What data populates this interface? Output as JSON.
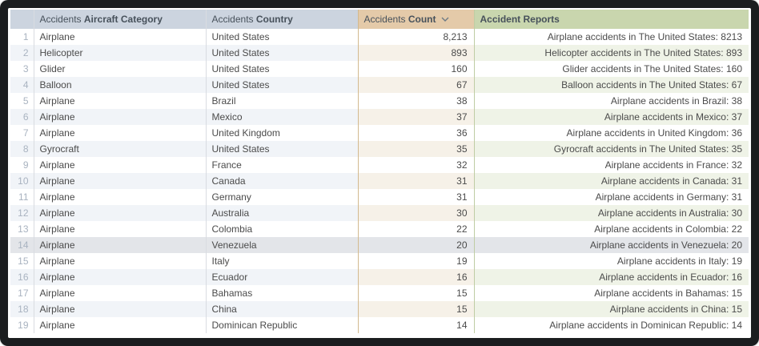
{
  "window": {
    "frame_color": "#1b1d1f",
    "background_color": "#ffffff"
  },
  "colors": {
    "header_blue": "#ccd4df",
    "header_tan": "#e4caa9",
    "header_green": "#c9d6ae",
    "header_text": "#47515b",
    "stripe_blue": "#f1f4f8",
    "stripe_tan": "#f6f1e8",
    "stripe_green": "#eff3e7",
    "highlighted_row": "#e3e5e9",
    "cell_text": "#4b4b4b",
    "row_number_text": "#a9b3c0",
    "border_tan": "#d3ba8f",
    "border_green": "#bfcda4"
  },
  "icons": {
    "sort_descending": "chevron-down-icon"
  },
  "table": {
    "columns": [
      {
        "id": "rownum",
        "prefix": "",
        "label": "",
        "sortable": false
      },
      {
        "id": "category",
        "prefix": "Accidents ",
        "label": "Aircraft Category",
        "sortable": true
      },
      {
        "id": "country",
        "prefix": "Accidents ",
        "label": "Country",
        "sortable": true
      },
      {
        "id": "count",
        "prefix": "Accidents ",
        "label": "Count",
        "sortable": true,
        "sort": "desc"
      },
      {
        "id": "reports",
        "prefix": "",
        "label": "Accident Reports",
        "sortable": true
      }
    ],
    "highlighted_row_number": 14,
    "rows": [
      {
        "num": 1,
        "category": "Airplane",
        "country": "United States",
        "count": "8,213",
        "report": "Airplane accidents in The United States: 8213"
      },
      {
        "num": 2,
        "category": "Helicopter",
        "country": "United States",
        "count": "893",
        "report": "Helicopter accidents in The United States: 893"
      },
      {
        "num": 3,
        "category": "Glider",
        "country": "United States",
        "count": "160",
        "report": "Glider accidents in The United States: 160"
      },
      {
        "num": 4,
        "category": "Balloon",
        "country": "United States",
        "count": "67",
        "report": "Balloon accidents in The United States: 67"
      },
      {
        "num": 5,
        "category": "Airplane",
        "country": "Brazil",
        "count": "38",
        "report": "Airplane accidents in Brazil: 38"
      },
      {
        "num": 6,
        "category": "Airplane",
        "country": "Mexico",
        "count": "37",
        "report": "Airplane accidents in Mexico: 37"
      },
      {
        "num": 7,
        "category": "Airplane",
        "country": "United Kingdom",
        "count": "36",
        "report": "Airplane accidents in United Kingdom: 36"
      },
      {
        "num": 8,
        "category": "Gyrocraft",
        "country": "United States",
        "count": "35",
        "report": "Gyrocraft accidents in The United States: 35"
      },
      {
        "num": 9,
        "category": "Airplane",
        "country": "France",
        "count": "32",
        "report": "Airplane accidents in France: 32"
      },
      {
        "num": 10,
        "category": "Airplane",
        "country": "Canada",
        "count": "31",
        "report": "Airplane accidents in Canada: 31"
      },
      {
        "num": 11,
        "category": "Airplane",
        "country": "Germany",
        "count": "31",
        "report": "Airplane accidents in Germany: 31"
      },
      {
        "num": 12,
        "category": "Airplane",
        "country": "Australia",
        "count": "30",
        "report": "Airplane accidents in Australia: 30"
      },
      {
        "num": 13,
        "category": "Airplane",
        "country": "Colombia",
        "count": "22",
        "report": "Airplane accidents in Colombia: 22"
      },
      {
        "num": 14,
        "category": "Airplane",
        "country": "Venezuela",
        "count": "20",
        "report": "Airplane accidents in Venezuela: 20"
      },
      {
        "num": 15,
        "category": "Airplane",
        "country": "Italy",
        "count": "19",
        "report": "Airplane accidents in Italy: 19"
      },
      {
        "num": 16,
        "category": "Airplane",
        "country": "Ecuador",
        "count": "16",
        "report": "Airplane accidents in Ecuador: 16"
      },
      {
        "num": 17,
        "category": "Airplane",
        "country": "Bahamas",
        "count": "15",
        "report": "Airplane accidents in Bahamas: 15"
      },
      {
        "num": 18,
        "category": "Airplane",
        "country": "China",
        "count": "15",
        "report": "Airplane accidents in China: 15"
      },
      {
        "num": 19,
        "category": "Airplane",
        "country": "Dominican Republic",
        "count": "14",
        "report": "Airplane accidents in Dominican Republic: 14"
      }
    ]
  }
}
